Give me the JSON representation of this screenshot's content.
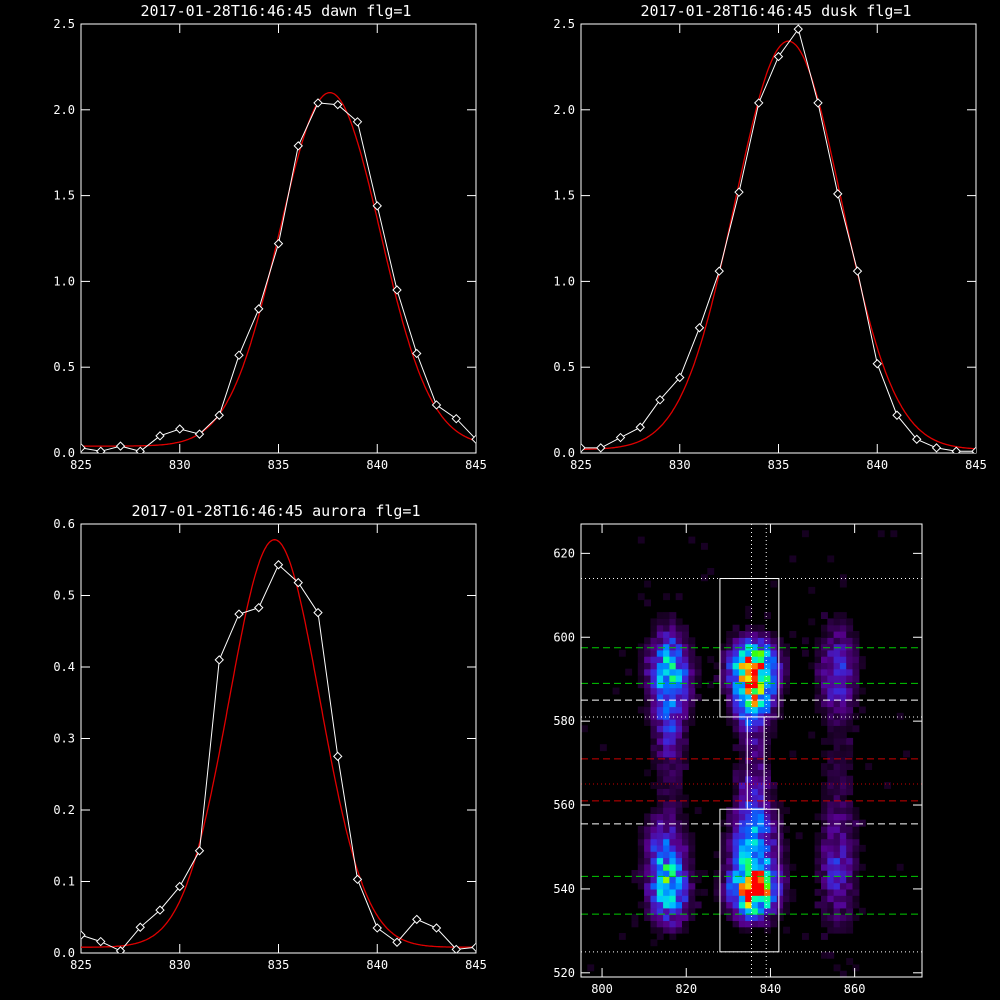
{
  "colors": {
    "background": "#000000",
    "axes": "#ffffff",
    "measured": "#ffffff",
    "fit": "#e00000",
    "guide_green": "#00cc00",
    "guide_red": "#cc0000",
    "guide_white": "#ffffff"
  },
  "chart_data": [
    {
      "id": "dawn",
      "type": "line",
      "title": "2017-01-28T16:46:45 dawn flg=1",
      "xlim": [
        825,
        845
      ],
      "ylim": [
        0,
        2.5
      ],
      "xticks": [
        825,
        830,
        835,
        840,
        845
      ],
      "yticks": [
        0.0,
        0.5,
        1.0,
        1.5,
        2.0,
        2.5
      ],
      "ytick_labels": [
        "0.0",
        "0.5",
        "1.0",
        "1.5",
        "2.0",
        "2.5"
      ],
      "grid": false,
      "series": [
        {
          "marker": "diamond",
          "x": [
            825,
            826,
            827,
            828,
            829,
            830,
            831,
            832,
            833,
            834,
            835,
            836,
            837,
            838,
            839,
            840,
            841,
            842,
            843,
            844,
            845
          ],
          "y": [
            0.03,
            0.01,
            0.04,
            0.01,
            0.1,
            0.14,
            0.11,
            0.22,
            0.57,
            0.84,
            1.22,
            1.79,
            2.04,
            2.03,
            1.93,
            1.44,
            0.95,
            0.58,
            0.28,
            0.2,
            0.08
          ]
        }
      ],
      "fit": {
        "amp": 2.06,
        "center": 837.6,
        "sigma": 2.55,
        "offset": 0.04
      }
    },
    {
      "id": "dusk",
      "type": "line",
      "title": "2017-01-28T16:46:45 dusk flg=1",
      "xlim": [
        825,
        845
      ],
      "ylim": [
        0,
        2.5
      ],
      "xticks": [
        825,
        830,
        835,
        840,
        845
      ],
      "yticks": [
        0.0,
        0.5,
        1.0,
        1.5,
        2.0,
        2.5
      ],
      "ytick_labels": [
        "0.0",
        "0.5",
        "1.0",
        "1.5",
        "2.0",
        "2.5"
      ],
      "grid": false,
      "series": [
        {
          "marker": "diamond",
          "x": [
            825,
            826,
            827,
            828,
            829,
            830,
            831,
            832,
            833,
            834,
            835,
            836,
            837,
            838,
            839,
            840,
            841,
            842,
            843,
            844,
            845
          ],
          "y": [
            0.03,
            0.03,
            0.09,
            0.15,
            0.31,
            0.44,
            0.73,
            1.06,
            1.52,
            2.04,
            2.31,
            2.47,
            2.04,
            1.51,
            1.06,
            0.52,
            0.22,
            0.08,
            0.03,
            0.01,
            0.01
          ]
        }
      ],
      "fit": {
        "amp": 2.38,
        "center": 835.5,
        "sigma": 2.7,
        "offset": 0.02
      }
    },
    {
      "id": "aurora",
      "type": "line",
      "title": "2017-01-28T16:46:45 aurora flg=1",
      "xlim": [
        825,
        845
      ],
      "ylim": [
        0,
        0.6
      ],
      "xticks": [
        825,
        830,
        835,
        840,
        845
      ],
      "yticks": [
        0.0,
        0.1,
        0.2,
        0.3,
        0.4,
        0.5,
        0.6
      ],
      "ytick_labels": [
        "0.0",
        "0.1",
        "0.2",
        "0.3",
        "0.4",
        "0.5",
        "0.6"
      ],
      "grid": false,
      "series": [
        {
          "marker": "diamond",
          "x": [
            825,
            826,
            827,
            828,
            829,
            830,
            831,
            832,
            833,
            834,
            835,
            836,
            837,
            838,
            839,
            840,
            841,
            842,
            843,
            844,
            845
          ],
          "y": [
            0.025,
            0.016,
            0.003,
            0.036,
            0.06,
            0.093,
            0.143,
            0.41,
            0.474,
            0.483,
            0.543,
            0.518,
            0.476,
            0.275,
            0.103,
            0.035,
            0.015,
            0.047,
            0.035,
            0.005,
            0.008
          ]
        }
      ],
      "fit": {
        "amp": 0.57,
        "center": 834.8,
        "sigma": 2.3,
        "offset": 0.008
      }
    },
    {
      "id": "image",
      "type": "heatmap",
      "title": "",
      "xlim": [
        795,
        876
      ],
      "ylim": [
        519,
        627
      ],
      "xticks": [
        800,
        820,
        840,
        860
      ],
      "yticks": [
        520,
        540,
        560,
        580,
        600,
        620
      ],
      "colormap": "rainbow",
      "grid": false,
      "blobs": [
        {
          "x": 816,
          "y": 592,
          "sx": 3.2,
          "sy": 6,
          "amp": 0.55
        },
        {
          "x": 816,
          "y": 579,
          "sx": 2.5,
          "sy": 6,
          "amp": 0.22
        },
        {
          "x": 815,
          "y": 548,
          "sx": 3.2,
          "sy": 6,
          "amp": 0.35
        },
        {
          "x": 816,
          "y": 539,
          "sx": 3,
          "sy": 5,
          "amp": 0.45
        },
        {
          "x": 836,
          "y": 593,
          "sx": 3.5,
          "sy": 4,
          "amp": 0.95
        },
        {
          "x": 836,
          "y": 585,
          "sx": 3,
          "sy": 4,
          "amp": 0.55
        },
        {
          "x": 836,
          "y": 550,
          "sx": 3.5,
          "sy": 8,
          "amp": 0.45
        },
        {
          "x": 836,
          "y": 540,
          "sx": 3.5,
          "sy": 4,
          "amp": 0.9
        },
        {
          "x": 836,
          "y": 570,
          "sx": 2.5,
          "sy": 10,
          "amp": 0.15
        },
        {
          "x": 856,
          "y": 592,
          "sx": 3,
          "sy": 7,
          "amp": 0.28
        },
        {
          "x": 856,
          "y": 545,
          "sx": 3,
          "sy": 9,
          "amp": 0.24
        },
        {
          "x": 816,
          "y": 566,
          "sx": 3,
          "sy": 8,
          "amp": 0.07
        },
        {
          "x": 856,
          "y": 568,
          "sx": 3,
          "sy": 10,
          "amp": 0.07
        }
      ],
      "boxes": [
        {
          "x0": 828,
          "x1": 842,
          "y0": 581,
          "y1": 614
        },
        {
          "x0": 828,
          "x1": 842,
          "y0": 525,
          "y1": 559
        },
        {
          "x0": 834.5,
          "x1": 838.5,
          "y0": 559,
          "y1": 581
        }
      ],
      "hlines": [
        {
          "y": 614,
          "style": "dotted",
          "color": "guide_white"
        },
        {
          "y": 597.5,
          "style": "dashed",
          "color": "guide_green"
        },
        {
          "y": 589,
          "style": "dashed",
          "color": "guide_green"
        },
        {
          "y": 585,
          "style": "dashed",
          "color": "guide_white"
        },
        {
          "y": 581,
          "style": "dotted",
          "color": "guide_white"
        },
        {
          "y": 571,
          "style": "dashed",
          "color": "guide_red"
        },
        {
          "y": 565,
          "style": "dotted",
          "color": "guide_red"
        },
        {
          "y": 561,
          "style": "dashed",
          "color": "guide_red"
        },
        {
          "y": 555.5,
          "style": "dashed",
          "color": "guide_white"
        },
        {
          "y": 543,
          "style": "dashed",
          "color": "guide_green"
        },
        {
          "y": 534,
          "style": "dashed",
          "color": "guide_green"
        },
        {
          "y": 525,
          "style": "dotted",
          "color": "guide_white"
        }
      ],
      "vlines": [
        {
          "x": 835.5,
          "style": "dotted",
          "color": "guide_white"
        },
        {
          "x": 839,
          "style": "dotted",
          "color": "guide_white"
        }
      ]
    }
  ]
}
